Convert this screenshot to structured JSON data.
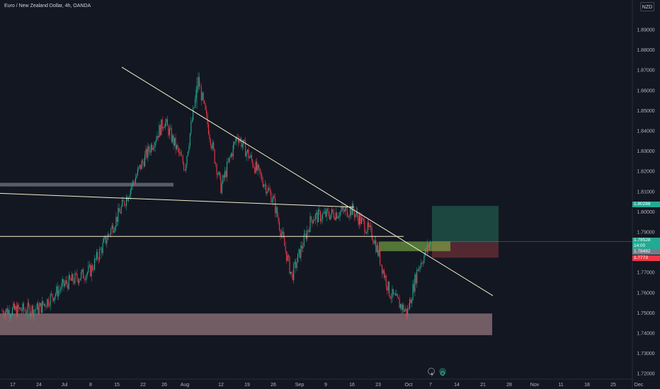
{
  "header": {
    "symbol_title": "Euro / New Zealand Dollar, 4h, OANDA",
    "currency_button": "NZD"
  },
  "colors": {
    "background": "#131722",
    "up": "#22ab94",
    "down": "#f23645",
    "trendline": "#f5f0c9",
    "support_zone": "#e8b4b8",
    "target_zone": "#1e4d44",
    "stop_zone": "#5c2a33",
    "entry_zone": "#8bc34a"
  },
  "price_axis": {
    "labels": [
      "1.89000",
      "1.88000",
      "1.87000",
      "1.86000",
      "1.85000",
      "1.84000",
      "1.83000",
      "1.82000",
      "1.81000",
      "1.80000",
      "1.79000",
      "1.78000",
      "1.77000",
      "1.76000",
      "1.75000",
      "1.74000",
      "1.73000",
      "1.72000"
    ],
    "tags": {
      "target": "1.80288",
      "last_price": "1.78528",
      "countdown": "14:00",
      "entry": "1.78492",
      "stop": "1.7773"
    }
  },
  "time_axis": {
    "labels": [
      "17",
      "24",
      "Jul",
      "8",
      "15",
      "22",
      "26",
      "Aug",
      "12",
      "19",
      "26",
      "Sep",
      "9",
      "16",
      "23",
      "Oct",
      "7",
      "14",
      "21",
      "28",
      "Nov",
      "11",
      "18",
      "25",
      "Dec"
    ]
  },
  "chart_data": {
    "type": "candlestick",
    "title": "Euro / New Zealand Dollar, 4h, OANDA",
    "quote_currency": "NZD",
    "ylim": [
      1.7185,
      1.8948
    ],
    "price_path_approx": [
      {
        "date": "Jun 17",
        "close": 1.751
      },
      {
        "date": "Jun 24",
        "close": 1.752
      },
      {
        "date": "Jul 1",
        "close": 1.764
      },
      {
        "date": "Jul 8",
        "close": 1.771
      },
      {
        "date": "Jul 15",
        "close": 1.797
      },
      {
        "date": "Jul 22",
        "close": 1.825
      },
      {
        "date": "Jul 26",
        "close": 1.845
      },
      {
        "date": "Aug 1",
        "close": 1.822
      },
      {
        "date": "Aug 5",
        "close": 1.865
      },
      {
        "date": "Aug 12",
        "close": 1.812
      },
      {
        "date": "Aug 16",
        "close": 1.838
      },
      {
        "date": "Aug 26",
        "close": 1.806
      },
      {
        "date": "Sep 2",
        "close": 1.768
      },
      {
        "date": "Sep 9",
        "close": 1.797
      },
      {
        "date": "Sep 16",
        "close": 1.801
      },
      {
        "date": "Sep 23",
        "close": 1.788
      },
      {
        "date": "Sep 27",
        "close": 1.76
      },
      {
        "date": "Oct 1",
        "close": 1.75
      },
      {
        "date": "Oct 4",
        "close": 1.772
      },
      {
        "date": "Oct 8",
        "close": 1.785
      }
    ],
    "drawings": {
      "descending_trendline": [
        1.8715,
        1.7585
      ],
      "sloped_support_line": [
        1.8091,
        1.8023
      ],
      "horizontal_line": 1.7878,
      "resistance_zone": [
        1.8125,
        1.8143
      ],
      "support_zone": [
        1.739,
        1.7497
      ],
      "long_position": {
        "target": 1.80288,
        "entry": 1.78492,
        "stop": 1.7773
      }
    },
    "grid": false
  }
}
